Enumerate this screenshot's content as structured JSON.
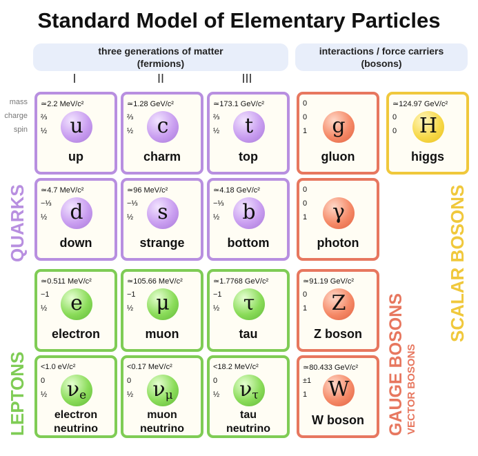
{
  "title": "Standard Model of Elementary Particles",
  "headers": {
    "matter": {
      "line1": "three generations of matter",
      "line2": "(fermions)"
    },
    "bosons": {
      "line1": "interactions / force carriers",
      "line2": "(bosons)"
    }
  },
  "generations": [
    "I",
    "II",
    "III"
  ],
  "row_labels": [
    "mass",
    "charge",
    "spin"
  ],
  "quarks": {
    "label": "QUARKS",
    "particles": [
      {
        "mass": "≃2.2 MeV/c²",
        "charge": "⅔",
        "spin": "½",
        "symbol": "u",
        "name": "up"
      },
      {
        "mass": "≃1.28 GeV/c²",
        "charge": "⅔",
        "spin": "½",
        "symbol": "c",
        "name": "charm"
      },
      {
        "mass": "≃173.1 GeV/c²",
        "charge": "⅔",
        "spin": "½",
        "symbol": "t",
        "name": "top"
      },
      {
        "mass": "≃4.7 MeV/c²",
        "charge": "−⅓",
        "spin": "½",
        "symbol": "d",
        "name": "down"
      },
      {
        "mass": "≃96 MeV/c²",
        "charge": "−⅓",
        "spin": "½",
        "symbol": "s",
        "name": "strange"
      },
      {
        "mass": "≃4.18 GeV/c²",
        "charge": "−⅓",
        "spin": "½",
        "symbol": "b",
        "name": "bottom"
      }
    ]
  },
  "leptons": {
    "label": "LEPTONS",
    "particles": [
      {
        "mass": "≃0.511 MeV/c²",
        "charge": "−1",
        "spin": "½",
        "symbol": "e",
        "name": "electron"
      },
      {
        "mass": "≃105.66 MeV/c²",
        "charge": "−1",
        "spin": "½",
        "symbol": "μ",
        "name": "muon"
      },
      {
        "mass": "≃1.7768 GeV/c²",
        "charge": "−1",
        "spin": "½",
        "symbol": "τ",
        "name": "tau"
      },
      {
        "mass": "<1.0 eV/c²",
        "charge": "0",
        "spin": "½",
        "symbol": "ν",
        "sub": "e",
        "name": [
          "electron",
          "neutrino"
        ]
      },
      {
        "mass": "<0.17 MeV/c²",
        "charge": "0",
        "spin": "½",
        "symbol": "ν",
        "sub": "μ",
        "name": [
          "muon",
          "neutrino"
        ]
      },
      {
        "mass": "<18.2 MeV/c²",
        "charge": "0",
        "spin": "½",
        "symbol": "ν",
        "sub": "τ",
        "name": [
          "tau",
          "neutrino"
        ]
      }
    ]
  },
  "gauge": {
    "label": "GAUGE BOSONS",
    "sublabel": "VECTOR BOSONS",
    "particles": [
      {
        "mass": "0",
        "charge": "0",
        "spin": "1",
        "symbol": "g",
        "name": "gluon"
      },
      {
        "mass": "0",
        "charge": "0",
        "spin": "1",
        "symbol": "γ",
        "name": "photon"
      },
      {
        "mass": "≃91.19 GeV/c²",
        "charge": "0",
        "spin": "1",
        "symbol": "Z",
        "name": "Z boson"
      },
      {
        "mass": "≃80.433 GeV/c²",
        "charge": "±1",
        "spin": "1",
        "symbol": "W",
        "name": "W boson"
      }
    ]
  },
  "scalar": {
    "label": "SCALAR BOSONS",
    "particles": [
      {
        "mass": "≃124.97 GeV/c²",
        "charge": "0",
        "spin": "0",
        "symbol": "H",
        "name": "higgs"
      }
    ]
  }
}
